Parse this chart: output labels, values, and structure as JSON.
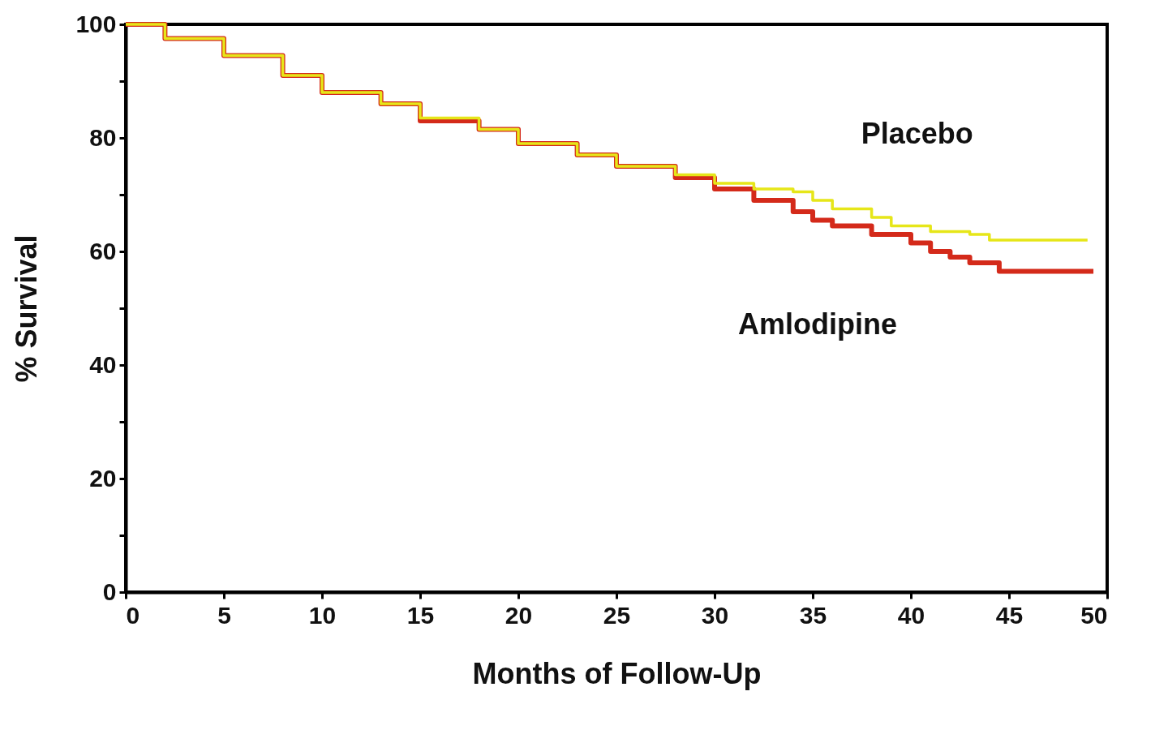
{
  "chart_data": {
    "type": "step",
    "xlabel": "Months of Follow-Up",
    "ylabel": "% Survival",
    "series": [
      {
        "name": "Placebo",
        "color": "#e6e619",
        "x": [
          0,
          2,
          5,
          8,
          10,
          13,
          15,
          18,
          20,
          23,
          25,
          28,
          30,
          32,
          34,
          35,
          36,
          38,
          39,
          41,
          43,
          44,
          49
        ],
        "values": [
          100,
          97.5,
          94.5,
          91,
          88,
          86,
          83.5,
          81.5,
          79,
          77,
          75,
          73.5,
          72,
          71,
          70.5,
          69,
          67.5,
          66,
          64.5,
          63.5,
          63,
          62,
          62
        ]
      },
      {
        "name": "Amlodipine",
        "color": "#d42a1a",
        "x": [
          0,
          2,
          5,
          8,
          10,
          13,
          15,
          18,
          20,
          23,
          25,
          28,
          30,
          32,
          34,
          35,
          36,
          38,
          40,
          41,
          42,
          43,
          44.5,
          49.3
        ],
        "values": [
          100,
          97.5,
          94.5,
          91,
          88,
          86,
          83,
          81.5,
          79,
          77,
          75,
          73,
          71,
          69,
          67,
          65.5,
          64.5,
          63,
          61.5,
          60,
          59,
          58,
          56.5,
          56.5
        ]
      }
    ],
    "xlim": [
      0,
      50
    ],
    "xticks": [
      0,
      5,
      10,
      15,
      20,
      25,
      30,
      35,
      40,
      45,
      50
    ],
    "ylim": [
      0,
      100
    ],
    "yticks": [
      0,
      {
        "value": 10,
        "label": null
      },
      20,
      {
        "value": 30,
        "label": null
      },
      40,
      {
        "value": 50,
        "label": null
      },
      60,
      {
        "value": 70,
        "label": null
      },
      80,
      {
        "value": 90,
        "label": null
      },
      100
    ],
    "grid": false,
    "marker": "none",
    "line_style": "solid"
  }
}
